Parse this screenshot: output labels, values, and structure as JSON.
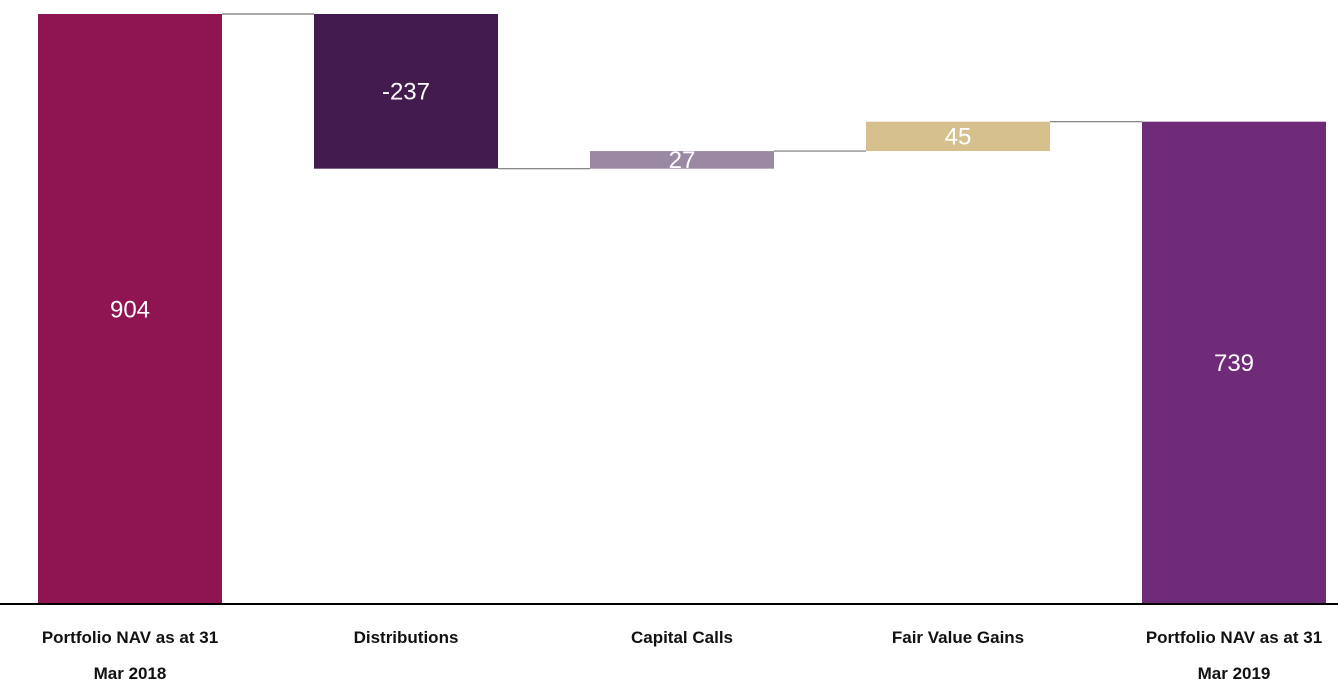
{
  "chart_data": {
    "type": "waterfall",
    "categories": [
      "Portfolio NAV as at 31 Mar 2018",
      "Distributions",
      "Capital Calls",
      "Fair Value Gains",
      "Portfolio NAV as at 31 Mar 2019"
    ],
    "values": [
      904,
      -237,
      27,
      45,
      739
    ],
    "measure": [
      "absolute",
      "relative",
      "relative",
      "relative",
      "total"
    ],
    "colors": [
      "#8e1452",
      "#431b4f",
      "#9b89a3",
      "#d6c08e",
      "#6f2a78"
    ]
  }
}
